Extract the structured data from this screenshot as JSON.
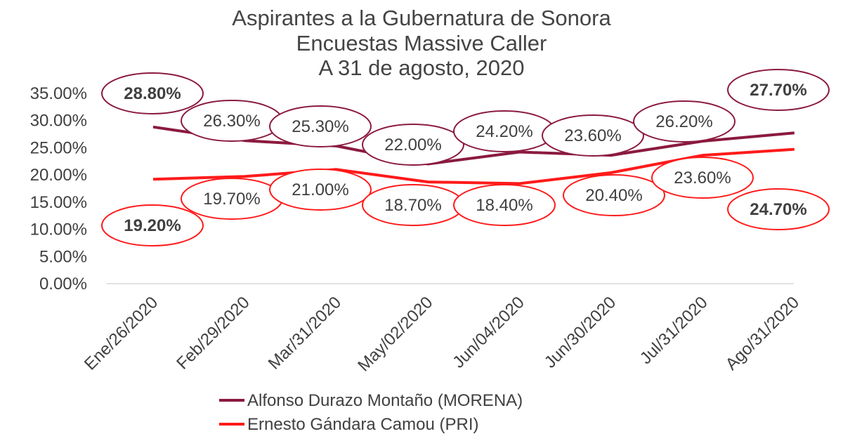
{
  "chart_data": {
    "type": "line",
    "title": [
      "Aspirantes a la Gubernatura de Sonora",
      "Encuestas Massive Caller",
      "A 31 de agosto, 2020"
    ],
    "categories": [
      "Ene/26/2020",
      "Feb/29/2020",
      "Mar/31/2020",
      "May/02/2020",
      "Jun/04/2020",
      "Jun/30/2020",
      "Jul/31/2020",
      "Ago/31/2020"
    ],
    "ylim": [
      0,
      35
    ],
    "yticks": [
      "0.00%",
      "5.00%",
      "10.00%",
      "15.00%",
      "20.00%",
      "25.00%",
      "30.00%",
      "35.00%"
    ],
    "legend_position": "bottom",
    "grid": false,
    "series": [
      {
        "name": "Alfonso Durazo Montaño (MORENA)",
        "color": "#8b1a3e",
        "values": [
          28.8,
          26.3,
          25.3,
          22.0,
          24.2,
          23.6,
          26.2,
          27.7
        ],
        "labels": [
          "28.80%",
          "26.30%",
          "25.30%",
          "22.00%",
          "24.20%",
          "23.60%",
          "26.20%",
          "27.70%"
        ]
      },
      {
        "name": "Ernesto Gándara Camou (PRI)",
        "color": "#ff1a1a",
        "values": [
          19.2,
          19.7,
          21.0,
          18.7,
          18.4,
          20.4,
          23.6,
          24.7
        ],
        "labels": [
          "19.20%",
          "19.70%",
          "21.00%",
          "18.70%",
          "18.40%",
          "20.40%",
          "23.60%",
          "24.70%"
        ]
      }
    ],
    "label_colors": {
      "default": "#404040",
      "first": "#6a9a3a",
      "last": "#404040"
    }
  }
}
